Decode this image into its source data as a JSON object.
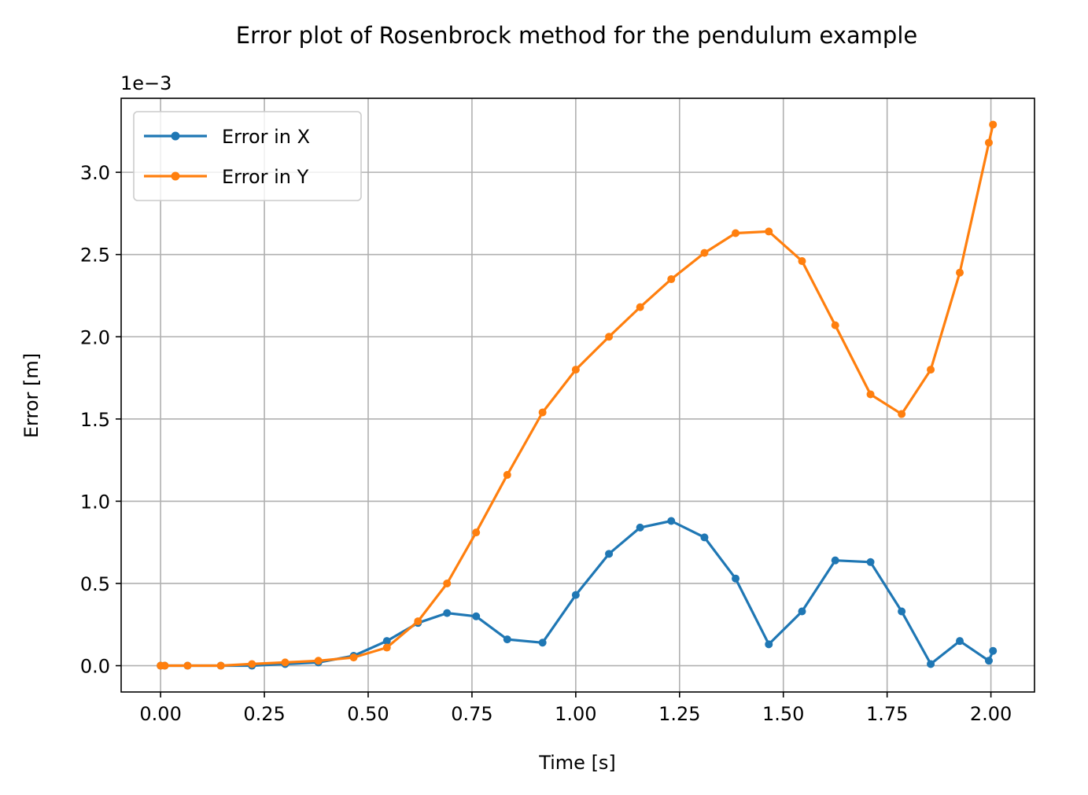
{
  "chart_data": {
    "type": "line",
    "title": "Error plot of Rosenbrock method for the pendulum example",
    "xlabel": "Time [s]",
    "ylabel": "Error [m]",
    "y_offset_label": "1e−3",
    "y_scale_factor": 0.001,
    "xlim": [
      -0.095,
      2.105
    ],
    "ylim": [
      -0.16,
      3.45
    ],
    "xticks": [
      0.0,
      0.25,
      0.5,
      0.75,
      1.0,
      1.25,
      1.5,
      1.75,
      2.0
    ],
    "xtick_labels": [
      "0.00",
      "0.25",
      "0.50",
      "0.75",
      "1.00",
      "1.25",
      "1.50",
      "1.75",
      "2.00"
    ],
    "yticks": [
      0.0,
      0.5,
      1.0,
      1.5,
      2.0,
      2.5,
      3.0
    ],
    "ytick_labels": [
      "0.0",
      "0.5",
      "1.0",
      "1.5",
      "2.0",
      "2.5",
      "3.0"
    ],
    "grid": true,
    "legend_position": "upper left",
    "series": [
      {
        "name": "Error in X",
        "color": "#1f77b4",
        "marker": "circle",
        "x": [
          0.0,
          0.01,
          0.065,
          0.145,
          0.22,
          0.3,
          0.38,
          0.465,
          0.545,
          0.62,
          0.69,
          0.76,
          0.835,
          0.92,
          1.0,
          1.08,
          1.155,
          1.23,
          1.31,
          1.385,
          1.465,
          1.545,
          1.625,
          1.71,
          1.785,
          1.855,
          1.925,
          1.995,
          2.005
        ],
        "y": [
          0.0,
          0.0,
          0.0,
          0.0,
          0.0,
          0.01,
          0.02,
          0.06,
          0.15,
          0.26,
          0.32,
          0.3,
          0.16,
          0.14,
          0.43,
          0.68,
          0.84,
          0.88,
          0.78,
          0.53,
          0.13,
          0.33,
          0.64,
          0.63,
          0.33,
          0.01,
          0.15,
          0.03,
          0.09
        ]
      },
      {
        "name": "Error in Y",
        "color": "#ff7f0e",
        "marker": "circle",
        "x": [
          0.0,
          0.01,
          0.065,
          0.145,
          0.22,
          0.3,
          0.38,
          0.465,
          0.545,
          0.62,
          0.69,
          0.76,
          0.835,
          0.92,
          1.0,
          1.08,
          1.155,
          1.23,
          1.31,
          1.385,
          1.465,
          1.545,
          1.625,
          1.71,
          1.785,
          1.855,
          1.925,
          1.995,
          2.005
        ],
        "y": [
          0.0,
          0.0,
          0.0,
          0.0,
          0.01,
          0.02,
          0.03,
          0.05,
          0.11,
          0.27,
          0.5,
          0.81,
          1.16,
          1.54,
          1.8,
          2.0,
          2.18,
          2.35,
          2.51,
          2.63,
          2.64,
          2.46,
          2.07,
          1.65,
          1.53,
          1.8,
          2.39,
          3.18,
          3.29
        ]
      }
    ]
  }
}
